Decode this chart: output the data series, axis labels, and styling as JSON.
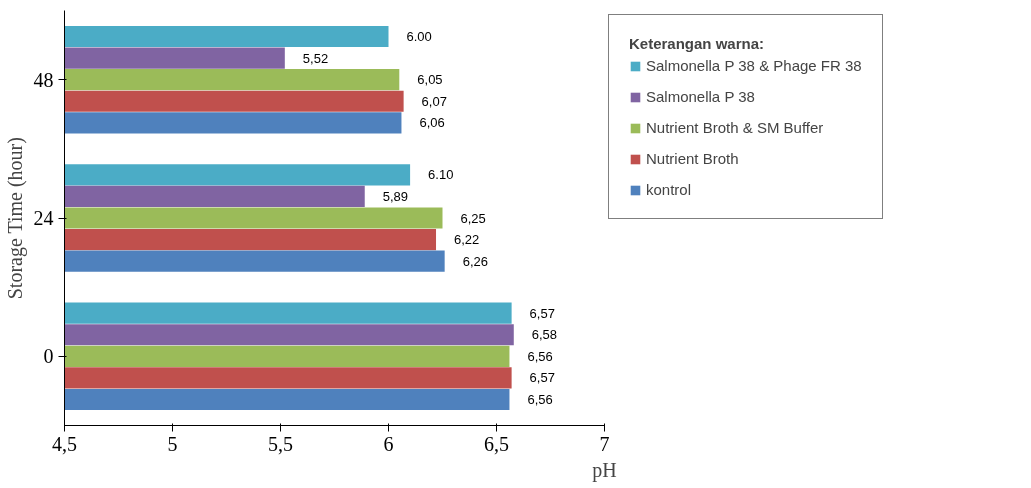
{
  "chart_data": {
    "type": "bar",
    "orientation": "horizontal",
    "xlabel": "pH",
    "ylabel": "Storage Time (hour)",
    "legend_title": "Keterangan warna:",
    "categories": [
      "48",
      "24",
      "0"
    ],
    "xlim": [
      4.5,
      7
    ],
    "xticks": [
      {
        "value": 4.5,
        "label": "4,5"
      },
      5,
      {
        "value": 5.5,
        "label": "5,5"
      },
      6,
      {
        "value": 6.5,
        "label": "6,5"
      },
      7
    ],
    "grid": false,
    "legend": "right",
    "series": [
      {
        "name": "Salmonella P 38 & Phage FR 38",
        "color": "#4bacc6",
        "values": [
          6.0,
          6.1,
          6.57
        ],
        "value_labels": [
          "6.00",
          "6.10",
          "6,57"
        ]
      },
      {
        "name": "Salmonella P 38",
        "color": "#8064a2",
        "values": [
          5.52,
          5.89,
          6.58
        ],
        "value_labels": [
          "5,52",
          "5,89",
          "6,58"
        ]
      },
      {
        "name": "Nutrient Broth & SM Buffer",
        "color": "#9bbb59",
        "values": [
          6.05,
          6.25,
          6.56
        ],
        "value_labels": [
          "6,05",
          "6,25",
          "6,56"
        ]
      },
      {
        "name": "Nutrient Broth",
        "color": "#c0504d",
        "values": [
          6.07,
          6.22,
          6.57
        ],
        "value_labels": [
          "6,07",
          "6,22",
          "6,57"
        ]
      },
      {
        "name": "kontrol",
        "color": "#4f81bd",
        "values": [
          6.06,
          6.26,
          6.56
        ],
        "value_labels": [
          "6,06",
          "6,26",
          "6,56"
        ]
      }
    ]
  }
}
